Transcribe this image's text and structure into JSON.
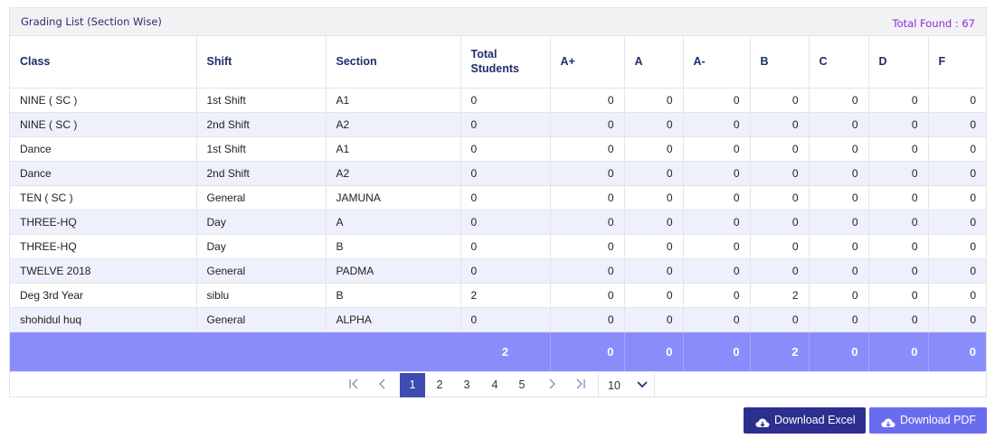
{
  "panel": {
    "title": "Grading List (Section Wise)",
    "total_found": "Total Found : 67"
  },
  "table": {
    "headers": [
      "Class",
      "Shift",
      "Section",
      "Total Students",
      "A+",
      "A",
      "A-",
      "B",
      "C",
      "D",
      "F"
    ],
    "rows": [
      [
        "NINE ( SC )",
        "1st Shift",
        "A1",
        "0",
        "0",
        "0",
        "0",
        "0",
        "0",
        "0",
        "0"
      ],
      [
        "NINE ( SC )",
        "2nd Shift",
        "A2",
        "0",
        "0",
        "0",
        "0",
        "0",
        "0",
        "0",
        "0"
      ],
      [
        "Dance",
        "1st Shift",
        "A1",
        "0",
        "0",
        "0",
        "0",
        "0",
        "0",
        "0",
        "0"
      ],
      [
        "Dance",
        "2nd Shift",
        "A2",
        "0",
        "0",
        "0",
        "0",
        "0",
        "0",
        "0",
        "0"
      ],
      [
        "TEN ( SC )",
        "General",
        "JAMUNA",
        "0",
        "0",
        "0",
        "0",
        "0",
        "0",
        "0",
        "0"
      ],
      [
        "THREE-HQ",
        "Day",
        "A",
        "0",
        "0",
        "0",
        "0",
        "0",
        "0",
        "0",
        "0"
      ],
      [
        "THREE-HQ",
        "Day",
        "B",
        "0",
        "0",
        "0",
        "0",
        "0",
        "0",
        "0",
        "0"
      ],
      [
        "TWELVE 2018",
        "General",
        "PADMA",
        "0",
        "0",
        "0",
        "0",
        "0",
        "0",
        "0",
        "0"
      ],
      [
        "Deg 3rd Year",
        "siblu",
        "B",
        "2",
        "0",
        "0",
        "0",
        "2",
        "0",
        "0",
        "0"
      ],
      [
        "shohidul huq",
        "General",
        "ALPHA",
        "0",
        "0",
        "0",
        "0",
        "0",
        "0",
        "0",
        "0"
      ]
    ],
    "totals": [
      "2",
      "0",
      "0",
      "0",
      "2",
      "0",
      "0",
      "0"
    ]
  },
  "pagination": {
    "first_icon": "first-page-icon",
    "prev_icon": "prev-page-icon",
    "next_icon": "next-page-icon",
    "last_icon": "last-page-icon",
    "pages": [
      "1",
      "2",
      "3",
      "4",
      "5"
    ],
    "current_page": "1",
    "page_size": "10"
  },
  "actions": {
    "excel_label": "Download Excel",
    "pdf_label": "Download PDF",
    "icon": "cloud-download-icon"
  },
  "colors": {
    "header_text": "#1f2d6b",
    "total_found": "#8a2bd6",
    "totals_row": "#8a8cfb",
    "active_page": "#3e4bb1",
    "excel_button": "#2c2f8f",
    "pdf_button": "#6a6cf0"
  }
}
